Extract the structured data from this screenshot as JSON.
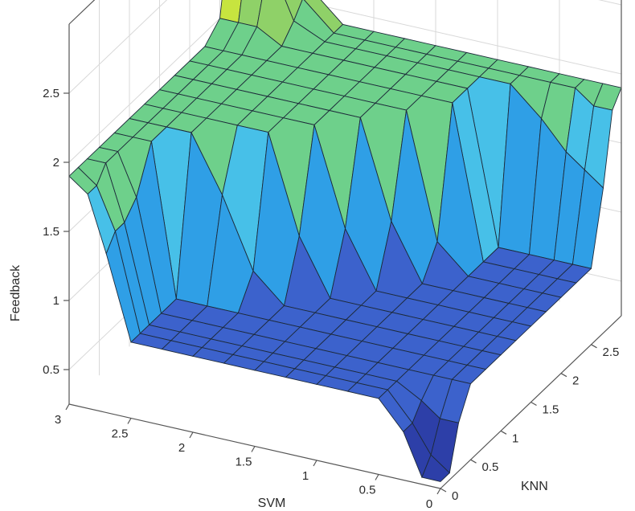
{
  "chart_data": {
    "type": "surface",
    "title": "",
    "xlabel": "SVM",
    "ylabel": "KNN",
    "zlabel": "Feedback",
    "xlim": [
      0,
      3
    ],
    "ylim": [
      0,
      3
    ],
    "zlim": [
      0.25,
      3
    ],
    "x_ticks": [
      "0",
      "0.5",
      "1",
      "1.5",
      "2",
      "2.5",
      "3"
    ],
    "y_ticks": [
      "0",
      "0.5",
      "1",
      "1.5",
      "2",
      "2.5"
    ],
    "z_ticks": [
      "0.5",
      "1",
      "1.5",
      "2",
      "2.5"
    ],
    "grid": true,
    "colormap": [
      "#2d3fa8",
      "#3c62cc",
      "#2f9fe6",
      "#47c0e8",
      "#6ed08b",
      "#8fd168",
      "#c7e43f",
      "#f0ea2e"
    ],
    "surface": {
      "x": [
        0,
        0.15,
        0.3,
        0.5,
        0.75,
        1.0,
        1.25,
        1.5,
        1.75,
        2.0,
        2.25,
        2.5,
        2.7,
        2.85,
        3.0
      ],
      "y": [
        0,
        0.15,
        0.3,
        0.5,
        0.75,
        1.0,
        1.25,
        1.5,
        1.75,
        2.0,
        2.25,
        2.5,
        2.7,
        2.85,
        3.0
      ],
      "z": [
        [
          0.3,
          0.3,
          0.6,
          0.8,
          0.8,
          0.8,
          0.8,
          0.8,
          0.8,
          0.8,
          0.8,
          0.8,
          1.4,
          1.8,
          1.9
        ],
        [
          0.3,
          0.4,
          0.6,
          0.8,
          0.8,
          0.8,
          0.8,
          0.8,
          0.8,
          0.8,
          0.8,
          0.8,
          1.5,
          1.8,
          1.9
        ],
        [
          0.6,
          0.6,
          0.7,
          0.8,
          0.8,
          0.8,
          0.8,
          0.8,
          0.8,
          0.8,
          0.8,
          0.8,
          1.5,
          1.9,
          1.9
        ],
        [
          0.8,
          0.8,
          0.8,
          0.8,
          0.8,
          0.8,
          0.8,
          0.8,
          0.8,
          0.8,
          0.8,
          0.8,
          1.6,
          1.9,
          1.9
        ],
        [
          0.8,
          0.8,
          0.8,
          0.8,
          0.8,
          0.8,
          0.8,
          0.8,
          0.8,
          0.8,
          0.8,
          0.8,
          1.9,
          1.9,
          1.9
        ],
        [
          0.8,
          0.8,
          0.8,
          0.8,
          0.8,
          0.8,
          0.8,
          0.8,
          0.8,
          1.0,
          1.5,
          1.9,
          1.9,
          1.9,
          1.9
        ],
        [
          0.8,
          0.8,
          0.8,
          0.8,
          0.8,
          0.8,
          0.8,
          0.8,
          1.2,
          1.9,
          1.9,
          1.9,
          1.9,
          1.9,
          1.9
        ],
        [
          0.8,
          0.8,
          0.8,
          0.8,
          0.8,
          0.8,
          0.8,
          1.2,
          1.9,
          1.9,
          1.9,
          1.9,
          1.9,
          1.9,
          1.9
        ],
        [
          0.8,
          0.8,
          0.8,
          0.8,
          0.8,
          0.8,
          1.2,
          1.9,
          1.9,
          1.9,
          1.9,
          1.9,
          1.9,
          1.9,
          1.9
        ],
        [
          0.8,
          0.8,
          0.8,
          0.8,
          0.8,
          1.0,
          1.9,
          1.9,
          1.9,
          1.9,
          1.9,
          1.9,
          1.9,
          1.9,
          1.9
        ],
        [
          0.8,
          0.8,
          0.8,
          0.8,
          0.8,
          1.9,
          1.9,
          1.9,
          1.9,
          1.9,
          1.9,
          1.9,
          1.9,
          1.9,
          1.9
        ],
        [
          0.8,
          0.8,
          0.8,
          0.8,
          0.8,
          1.9,
          1.9,
          1.9,
          1.9,
          1.9,
          1.9,
          1.9,
          2.0,
          2.0,
          2.0
        ],
        [
          1.3,
          1.4,
          1.5,
          1.7,
          1.9,
          1.9,
          1.9,
          1.9,
          1.9,
          1.9,
          1.9,
          2.0,
          2.4,
          2.6,
          2.7
        ],
        [
          1.8,
          1.8,
          1.9,
          1.9,
          1.9,
          1.9,
          1.9,
          1.9,
          1.9,
          1.9,
          1.9,
          2.1,
          2.6,
          2.9,
          3.0
        ],
        [
          1.9,
          1.9,
          1.9,
          1.9,
          1.9,
          1.9,
          1.9,
          1.9,
          1.9,
          1.9,
          1.9,
          2.1,
          2.7,
          3.0,
          3.0
        ]
      ]
    }
  }
}
